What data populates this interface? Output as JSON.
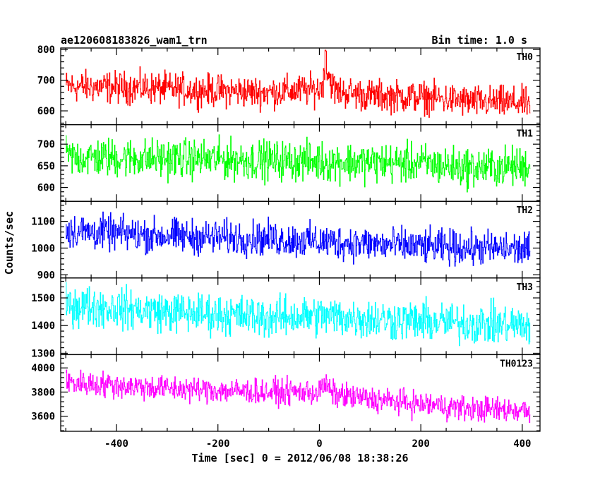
{
  "chart_data": {
    "type": "line",
    "title": "ae120608183826_wam1_trn",
    "subtitle": "Bin time: 1.0 s",
    "xlabel": "Time [sec] 0 = 2012/06/08 18:38:26",
    "ylabel": "Counts/sec",
    "xlim": [
      -510,
      435
    ],
    "x_ticks": [
      -400,
      -200,
      0,
      200,
      400
    ],
    "x_data_range": [
      -500,
      415
    ],
    "grid": false,
    "panels": [
      {
        "name": "TH0",
        "color": "#ff0000",
        "ylim": [
          555,
          805
        ],
        "y_ticks": [
          600,
          700,
          800
        ],
        "trend": {
          "x": [
            -500,
            -350,
            -200,
            -100,
            0,
            15,
            30,
            100,
            200,
            300,
            415
          ],
          "y": [
            680,
            675,
            665,
            660,
            670,
            730,
            665,
            650,
            645,
            630,
            625
          ]
        },
        "noise": 32,
        "peak": {
          "x": 12,
          "y": 800
        }
      },
      {
        "name": "TH1",
        "color": "#00ff00",
        "ylim": [
          568,
          745
        ],
        "y_ticks": [
          600,
          650,
          700
        ],
        "trend": {
          "x": [
            -500,
            -200,
            0,
            200,
            300,
            415
          ],
          "y": [
            670,
            665,
            660,
            655,
            645,
            650
          ]
        },
        "noise": 28
      },
      {
        "name": "TH2",
        "color": "#0000ff",
        "ylim": [
          888,
          1175
        ],
        "y_ticks": [
          900,
          1000,
          1100
        ],
        "trend": {
          "x": [
            -500,
            -300,
            -100,
            0,
            200,
            415
          ],
          "y": [
            1065,
            1045,
            1035,
            1025,
            1005,
            995
          ]
        },
        "noise": 40
      },
      {
        "name": "TH3",
        "color": "#00ffff",
        "ylim": [
          1295,
          1572
        ],
        "y_ticks": [
          1300,
          1400,
          1500
        ],
        "trend": {
          "x": [
            -500,
            -300,
            -100,
            0,
            200,
            415
          ],
          "y": [
            1475,
            1450,
            1430,
            1435,
            1415,
            1400
          ]
        },
        "noise": 45
      },
      {
        "name": "TH0123",
        "color": "#ff00ff",
        "ylim": [
          3475,
          4110
        ],
        "y_ticks": [
          3600,
          3800,
          4000
        ],
        "trend": {
          "x": [
            -500,
            -300,
            -100,
            0,
            10,
            30,
            100,
            200,
            300,
            415
          ],
          "y": [
            3880,
            3830,
            3800,
            3800,
            3860,
            3780,
            3740,
            3700,
            3660,
            3650
          ]
        },
        "noise": 65
      }
    ]
  }
}
